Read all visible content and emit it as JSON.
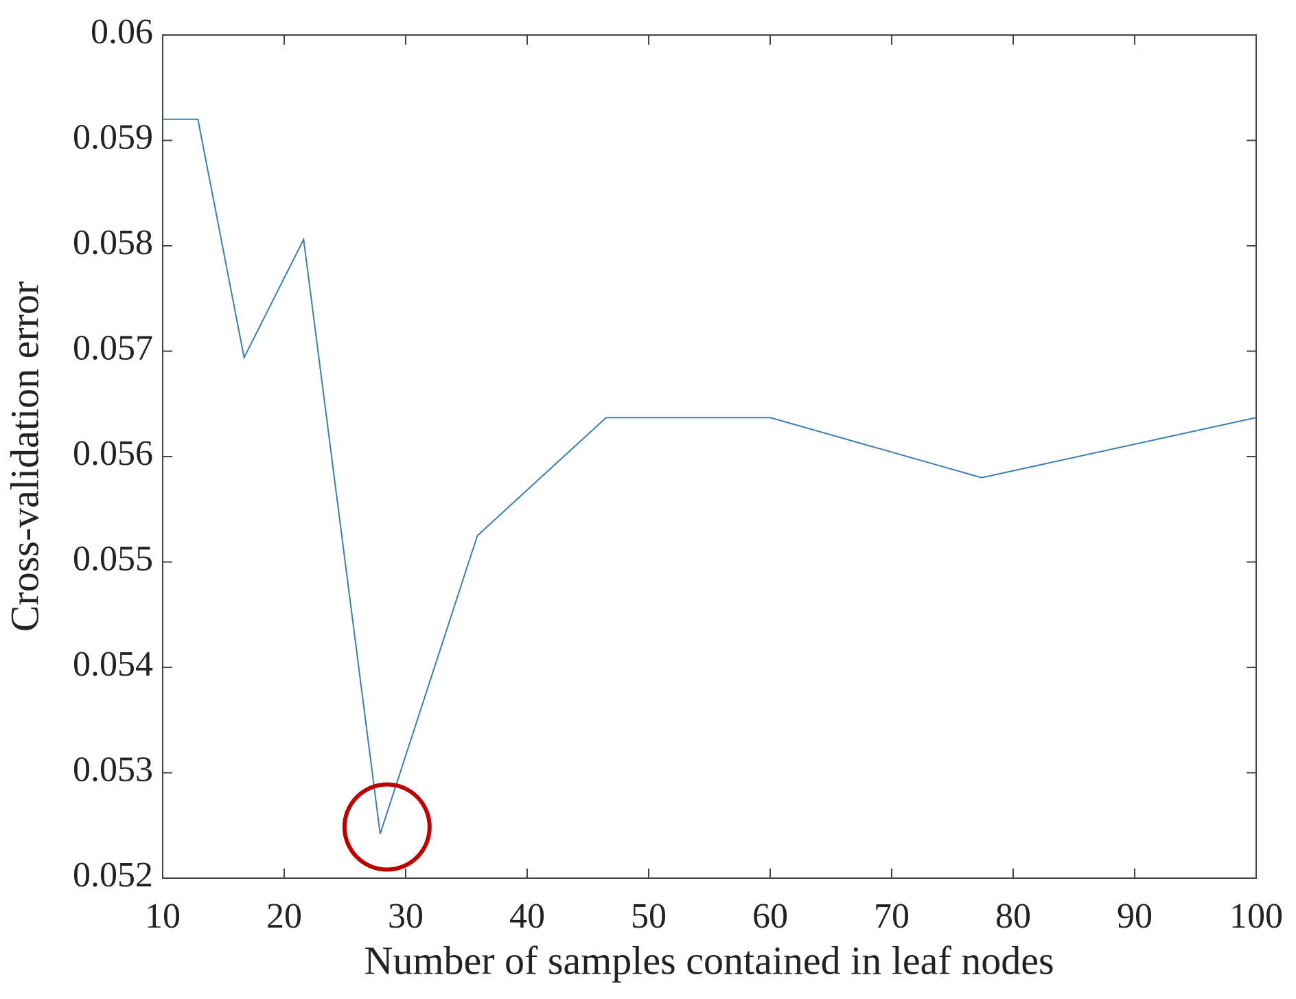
{
  "chart_data": {
    "type": "line",
    "x_label": "Number of samples contained in leaf nodes",
    "y_label": "Cross-validation error",
    "x": [
      10,
      12.9,
      16.7,
      21.6,
      27.9,
      35.9,
      46.5,
      60,
      77.4,
      100
    ],
    "values": [
      0.0592,
      0.0592,
      0.05694,
      0.05806,
      0.05242,
      0.05525,
      0.05637,
      0.05637,
      0.0558,
      0.05637
    ],
    "color": "#3a7fb0",
    "xlim": [
      10,
      100
    ],
    "xticks": [
      10,
      20,
      30,
      40,
      50,
      60,
      70,
      80,
      90,
      100
    ],
    "ylim": [
      0.052,
      0.06
    ],
    "yticks": [
      0.052,
      0.053,
      0.054,
      0.055,
      0.056,
      0.057,
      0.058,
      0.059,
      0.06
    ],
    "grid": false
  }
}
